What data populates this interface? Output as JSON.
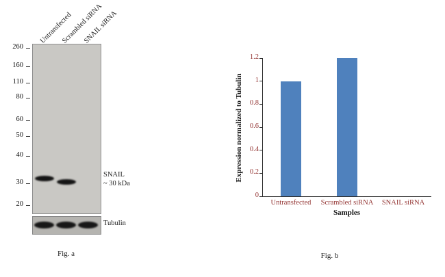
{
  "fig_a": {
    "caption": "Fig. a",
    "lane_labels": [
      "Untransfected",
      "Scrambled siRNA",
      "SNAIL siRNA"
    ],
    "mw_markers": [
      "260",
      "160",
      "110",
      "80",
      "60",
      "50",
      "40",
      "30",
      "20"
    ],
    "band_label_line1": "SNAIL",
    "band_label_line2": "~ 30 kDa",
    "loading_control_label": "Tubulin"
  },
  "fig_b": {
    "caption": "Fig. b"
  },
  "chart_data": {
    "type": "bar",
    "title": "",
    "categories": [
      "Untransfected",
      "Scrambled siRNA",
      "SNAIL siRNA"
    ],
    "values": [
      1.0,
      1.2,
      0
    ],
    "xlabel": "Samples",
    "ylabel": "Expression normalized to Tubulin",
    "ylim": [
      0,
      1.2
    ],
    "yticks": [
      0,
      0.2,
      0.4,
      0.6,
      0.8,
      1,
      1.2
    ],
    "bar_color": "#4f81bd",
    "grid": false,
    "legend": false
  },
  "colors": {
    "bar_fill": "#4f81bd",
    "axis_tick_text": "#943634",
    "axis_title_text": "#111111",
    "blot_background": "#c9c8c4",
    "tubulin_background": "#b5b4b0"
  }
}
